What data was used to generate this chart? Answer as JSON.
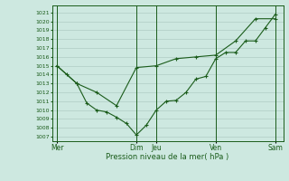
{
  "xlabel": "Pression niveau de la mer( hPa )",
  "background_color": "#cde8e0",
  "plot_bg_color": "#cde8e0",
  "grid_color": "#b0ccc4",
  "line_color": "#1a5c1a",
  "ylim": [
    1006.5,
    1021.8
  ],
  "yticks": [
    1007,
    1008,
    1009,
    1010,
    1011,
    1012,
    1013,
    1014,
    1015,
    1016,
    1017,
    1018,
    1019,
    1020,
    1021
  ],
  "xtick_labels": [
    "Mer",
    "Dim",
    "Jeu",
    "Ven",
    "Sam"
  ],
  "xtick_positions": [
    0,
    8,
    10,
    16,
    22
  ],
  "vlines": [
    0,
    8,
    10,
    16,
    22
  ],
  "series1_x": [
    0,
    1,
    2,
    3,
    4,
    5,
    6,
    7,
    8,
    9,
    10,
    11,
    12,
    13,
    14,
    15,
    16,
    17,
    18,
    19,
    20,
    21,
    22
  ],
  "series1_y": [
    1015.0,
    1014.0,
    1013.0,
    1010.8,
    1010.0,
    1009.8,
    1009.2,
    1008.5,
    1007.2,
    1008.3,
    1010.0,
    1011.0,
    1011.1,
    1012.0,
    1013.5,
    1013.8,
    1015.8,
    1016.5,
    1016.5,
    1017.8,
    1017.8,
    1019.3,
    1020.8
  ],
  "series2_x": [
    0,
    2,
    4,
    6,
    8,
    10,
    12,
    14,
    16,
    18,
    20,
    22
  ],
  "series2_y": [
    1015.0,
    1013.0,
    1012.0,
    1010.5,
    1014.8,
    1015.0,
    1015.8,
    1016.0,
    1016.2,
    1017.8,
    1020.3,
    1020.3
  ]
}
